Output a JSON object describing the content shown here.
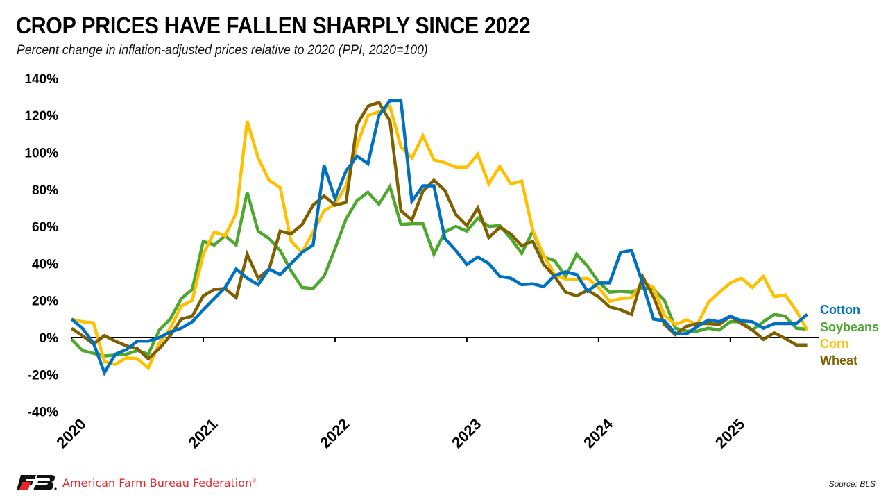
{
  "header": {
    "title": "CROP PRICES HAVE FALLEN SHARPLY SINCE 2022",
    "subtitle": "Percent change in inflation-adjusted prices relative to 2020 (PPI, 2020=100)"
  },
  "footer": {
    "organization": "American Farm Bureau Federation",
    "registered_mark": "®",
    "logo_text": "FB",
    "source": "Source: BLS"
  },
  "chart_data": {
    "type": "line",
    "title": "CROP PRICES HAVE FALLEN SHARPLY SINCE 2022",
    "subtitle": "Percent change in inflation-adjusted prices relative to 2020 (PPI, 2020=100)",
    "xlabel": "",
    "ylabel": "",
    "x_start": "2020-01",
    "x_frequency": "monthly",
    "x_ticks": [
      "2020",
      "2021",
      "2022",
      "2023",
      "2024",
      "2025"
    ],
    "y_ticks": [
      "140%",
      "120%",
      "100%",
      "80%",
      "60%",
      "40%",
      "20%",
      "0%",
      "-20%",
      "-40%"
    ],
    "ylim": [
      -40,
      140
    ],
    "grid": false,
    "legend_placement": "right-end-of-lines",
    "series": [
      {
        "name": "Cotton",
        "color": "#0070c0",
        "values": [
          10,
          5,
          -3,
          -19,
          -9,
          -6.5,
          -2,
          -2,
          0,
          3,
          5,
          8.5,
          15,
          21,
          27,
          37,
          32,
          28.5,
          37,
          34,
          40,
          46,
          50,
          93,
          75,
          90,
          98,
          94,
          120,
          128,
          128,
          73.5,
          82,
          82,
          53.5,
          47,
          39.5,
          43.5,
          40,
          33,
          32,
          28.5,
          29,
          27.5,
          33.5,
          35.5,
          34,
          25,
          29.5,
          29.5,
          46,
          47,
          29.5,
          10,
          9,
          2,
          2,
          6,
          9.5,
          8.5,
          11.5,
          9,
          8.5,
          5,
          7.5,
          7.5,
          7.5,
          12.5
        ]
      },
      {
        "name": "Soybeans",
        "color": "#4ea72e",
        "values": [
          -1,
          -7,
          -8.5,
          -10,
          -9.5,
          -9,
          -7,
          -9,
          4,
          10,
          21,
          26,
          52,
          50,
          55,
          50,
          78.5,
          57.5,
          53.5,
          47,
          36,
          27,
          26.5,
          33,
          48,
          64,
          74,
          78.5,
          72,
          81.5,
          61,
          61.5,
          61.5,
          45,
          57,
          60,
          57.5,
          64.5,
          60,
          60.5,
          53.5,
          45.5,
          57.5,
          43.5,
          41.5,
          33,
          45,
          38.5,
          30,
          24.5,
          25,
          24.5,
          27,
          26,
          20,
          5,
          3.5,
          3.5,
          5,
          4,
          8.5,
          8.5,
          4,
          8.5,
          12.5,
          11.5,
          5,
          4.5
        ]
      },
      {
        "name": "Corn",
        "color": "#ffc000",
        "values": [
          10,
          8.5,
          8,
          -13,
          -14.5,
          -11,
          -11.5,
          -16.5,
          -3,
          5,
          17,
          20,
          45,
          57,
          55,
          67,
          117,
          97,
          85,
          81,
          52,
          46,
          57,
          68.5,
          72,
          82,
          104,
          120,
          122,
          125,
          103,
          97,
          109,
          96,
          94.5,
          92,
          92,
          99,
          83,
          92.5,
          83,
          84.5,
          58,
          44.5,
          34,
          31.5,
          31.5,
          32,
          27,
          19.5,
          21,
          21.5,
          30,
          27,
          12,
          7,
          9.5,
          7,
          19,
          24.5,
          29.5,
          32,
          27,
          33,
          22,
          23,
          14.5,
          4
        ]
      },
      {
        "name": "Wheat",
        "color": "#7f6000",
        "values": [
          5,
          1,
          -3.5,
          1,
          -2,
          -4.5,
          -6,
          -11.5,
          -6,
          1,
          10,
          11.5,
          22.5,
          26,
          26.5,
          21.5,
          45,
          32,
          37,
          57.5,
          56,
          61,
          71.5,
          76.5,
          71.5,
          73,
          115,
          125,
          127,
          117,
          68.5,
          63.5,
          79,
          85,
          79.5,
          66.5,
          60.5,
          70,
          54,
          59.5,
          56,
          49.5,
          52,
          39.5,
          33,
          24.5,
          22.5,
          25.5,
          22,
          16.5,
          15,
          12.5,
          33,
          22,
          7,
          1.5,
          6,
          7.5,
          7.5,
          7,
          11.5,
          7.5,
          4,
          -1,
          2.5,
          -0.5,
          -4,
          -4
        ]
      }
    ]
  }
}
